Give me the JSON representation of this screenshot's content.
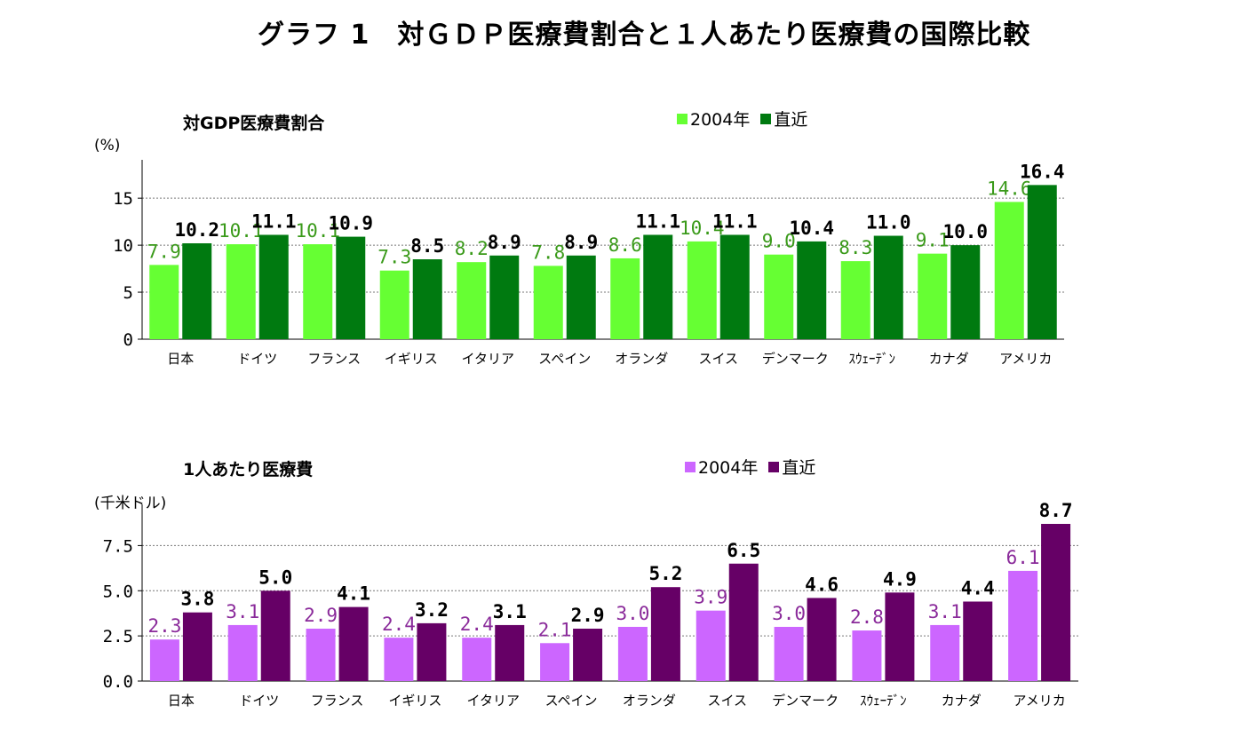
{
  "title": "グラフ 1　対ＧＤＰ医療費割合と１人あたり医療費の国際比較",
  "chart_data": [
    {
      "type": "bar",
      "title": "対GDP医療費割合",
      "unit": "(%)",
      "categories": [
        "日本",
        "ドイツ",
        "フランス",
        "イギリス",
        "イタリア",
        "スペイン",
        "オランダ",
        "スイス",
        "デンマーク",
        "ｽｳｪｰﾃﾞﾝ",
        "カナダ",
        "アメリカ"
      ],
      "series": [
        {
          "name": "2004年",
          "color": "#66ff33",
          "label_color": "#3a9a1a",
          "values": [
            7.9,
            10.1,
            10.1,
            7.3,
            8.2,
            7.8,
            8.6,
            10.4,
            9.0,
            8.3,
            9.1,
            14.6
          ],
          "labels": [
            "7.9",
            "10.1",
            "10.1",
            "7.3",
            "8.2",
            "7.8",
            "8.6",
            "10.4",
            "9.0",
            "8.3",
            "9.1",
            "14.6"
          ]
        },
        {
          "name": "直近",
          "color": "#007a10",
          "label_color": "#000000",
          "values": [
            10.2,
            11.1,
            10.9,
            8.5,
            8.9,
            8.9,
            11.1,
            11.1,
            10.4,
            11.0,
            10.0,
            16.4
          ],
          "labels": [
            "10.2",
            "11.1",
            "10.9",
            "8.5",
            "8.9",
            "8.9",
            "11.1",
            "11.1",
            "10.4",
            "11.0",
            "10.0",
            "16.4"
          ]
        }
      ],
      "ylim": [
        0,
        17
      ],
      "yticks": [
        0,
        5,
        10,
        15
      ],
      "ytick_labels": [
        "0",
        "5",
        "10",
        "15"
      ],
      "grid": true,
      "legend": "top-center"
    },
    {
      "type": "bar",
      "title": "1人あたり医療費",
      "unit": "(千米ドル)",
      "categories": [
        "日本",
        "ドイツ",
        "フランス",
        "イギリス",
        "イタリア",
        "スペイン",
        "オランダ",
        "スイス",
        "デンマーク",
        "ｽｳｪｰﾃﾞﾝ",
        "カナダ",
        "アメリカ"
      ],
      "series": [
        {
          "name": "2004年",
          "color": "#cc66ff",
          "label_color": "#8a2a9a",
          "values": [
            2.3,
            3.1,
            2.9,
            2.4,
            2.4,
            2.1,
            3.0,
            3.9,
            3.0,
            2.8,
            3.1,
            6.1
          ],
          "labels": [
            "2.3",
            "3.1",
            "2.9",
            "2.4",
            "2.4",
            "2.1",
            "3.0",
            "3.9",
            "3.0",
            "2.8",
            "3.1",
            "6.1"
          ]
        },
        {
          "name": "直近",
          "color": "#660066",
          "label_color": "#000000",
          "values": [
            3.8,
            5.0,
            4.1,
            3.2,
            3.1,
            2.9,
            5.2,
            6.5,
            4.6,
            4.9,
            4.4,
            8.7
          ],
          "labels": [
            "3.8",
            "5.0",
            "4.1",
            "3.2",
            "3.1",
            "2.9",
            "5.2",
            "6.5",
            "4.6",
            "4.9",
            "4.4",
            "8.7"
          ]
        }
      ],
      "ylim": [
        0,
        8.7
      ],
      "yticks": [
        0,
        2.5,
        5.0,
        7.5
      ],
      "ytick_labels": [
        "0.0",
        "2.5",
        "5.0",
        "7.5"
      ],
      "grid": true,
      "legend": "top-center"
    }
  ]
}
